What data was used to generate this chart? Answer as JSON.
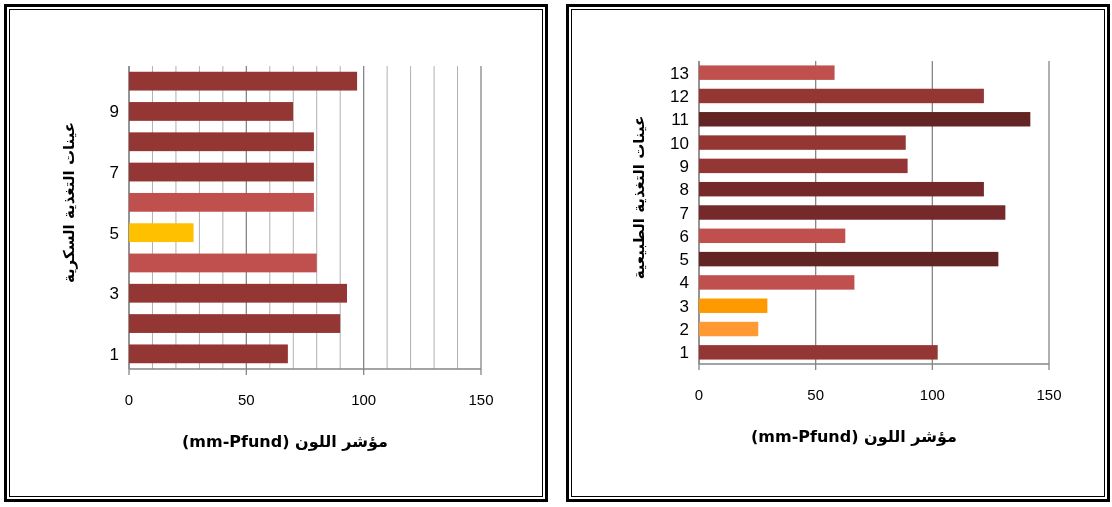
{
  "chart_data": [
    {
      "type": "bar",
      "orientation": "horizontal",
      "categories": [
        null,
        "9",
        null,
        "7",
        null,
        "5",
        null,
        "3",
        null,
        "1"
      ],
      "values": [
        97.2,
        69.9,
        78.8,
        78.8,
        78.8,
        27.5,
        80,
        92.9,
        90,
        67.7
      ],
      "colors": [
        "#943634",
        "#943634",
        "#943634",
        "#943634",
        "#c0504d",
        "#ffc000",
        "#c0504d",
        "#943634",
        "#943634",
        "#943634"
      ],
      "xlim": [
        0,
        150
      ],
      "xticks": [
        0,
        {
          "value": 10,
          "label": null
        },
        {
          "value": 20,
          "label": null
        },
        {
          "value": 30,
          "label": null
        },
        {
          "value": 40,
          "label": null
        },
        50,
        {
          "value": 60,
          "label": null
        },
        {
          "value": 70,
          "label": null
        },
        {
          "value": 80,
          "label": null
        },
        {
          "value": 90,
          "label": null
        },
        100,
        {
          "value": 110,
          "label": null
        },
        {
          "value": 120,
          "label": null
        },
        {
          "value": 130,
          "label": null
        },
        {
          "value": 140,
          "label": null
        },
        150
      ],
      "grid": "x",
      "xlabel": "مؤشر اللون (mm-Pfund)",
      "ylabel": "عينات التغذية السكرية"
    },
    {
      "type": "bar",
      "orientation": "horizontal",
      "categories": [
        "13",
        "12",
        "11",
        "10",
        "9",
        "8",
        "7",
        "6",
        "5",
        "4",
        "3",
        "2",
        "1"
      ],
      "values": [
        58.1,
        122.1,
        142,
        88.6,
        89.4,
        122.1,
        131.3,
        62.7,
        128.3,
        66.6,
        29.3,
        25.4,
        102.3
      ],
      "colors": [
        "#c0504d",
        "#943634",
        "#632523",
        "#943634",
        "#943634",
        "#76292a",
        "#76292a",
        "#c0504d",
        "#632523",
        "#c0504d",
        "#ff9900",
        "#ff9933",
        "#943634"
      ],
      "xlim": [
        0,
        150
      ],
      "xticks": [
        0,
        50,
        100,
        150
      ],
      "grid": "x",
      "xlabel": "مؤشر اللون (mm-Pfund)",
      "ylabel": "عينات التغذية الطبيعية"
    }
  ]
}
